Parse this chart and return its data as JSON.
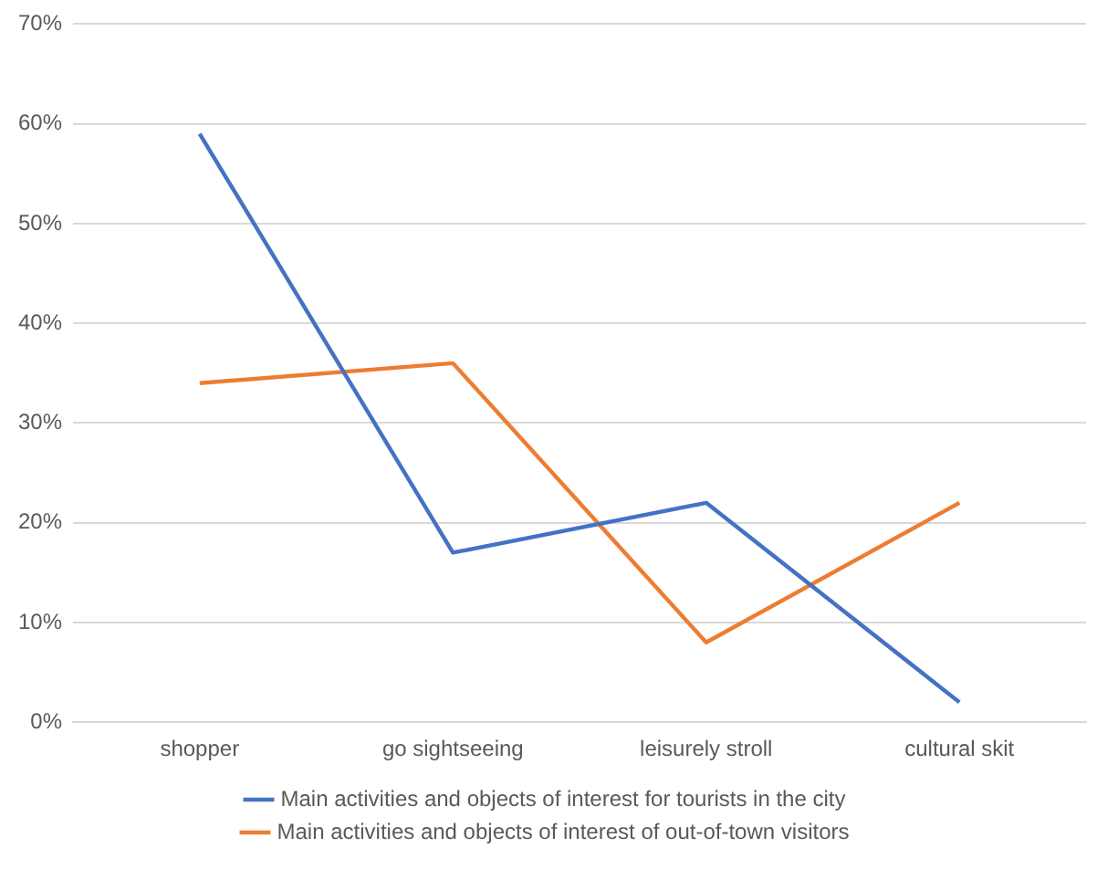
{
  "chart_data": {
    "type": "line",
    "categories": [
      "shopper",
      "go sightseeing",
      "leisurely stroll",
      "cultural skit"
    ],
    "series": [
      {
        "name": "Main activities and objects of interest for tourists in the city",
        "color": "#4472c4",
        "values": [
          59,
          17,
          22,
          2
        ]
      },
      {
        "name": "Main activities and objects of interest of out-of-town visitors",
        "color": "#ed7d31",
        "values": [
          34,
          36,
          8,
          22
        ]
      }
    ],
    "ylim": [
      0,
      70
    ],
    "yticks": [
      {
        "value": 0,
        "label": "0%"
      },
      {
        "value": 10,
        "label": "10%"
      },
      {
        "value": 20,
        "label": "20%"
      },
      {
        "value": 30,
        "label": "30%"
      },
      {
        "value": 40,
        "label": "40%"
      },
      {
        "value": 50,
        "label": "50%"
      },
      {
        "value": 60,
        "label": "60%"
      },
      {
        "value": 70,
        "label": "70%"
      }
    ],
    "grid": "y",
    "legend": "bottom",
    "marker": "none",
    "line_style": "solid"
  }
}
